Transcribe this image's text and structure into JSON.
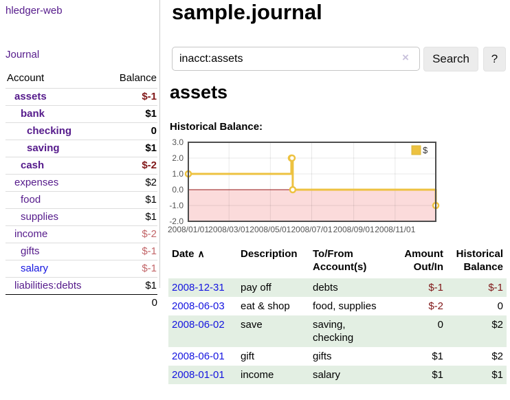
{
  "colors": {
    "link_purple": "#551a8b",
    "link_blue": "#1414e0",
    "negative_strong": "#801718",
    "negative_light": "#c26568",
    "row_stripe_green": "#e3efe3",
    "series_yellow": "#edc240",
    "negative_region_pink": "#fbdbdb",
    "zero_line_red": "#951515"
  },
  "sidebar": {
    "app_title": "hledger-web",
    "nav": {
      "journal": "Journal"
    },
    "accounts_table": {
      "headers": {
        "account": "Account",
        "balance": "Balance"
      },
      "rows": [
        {
          "name": "assets",
          "depth": 1,
          "bold": true,
          "link": "purple",
          "balance": "$-1",
          "tone": "neg"
        },
        {
          "name": "bank",
          "depth": 2,
          "bold": true,
          "link": "purple",
          "balance": "$1",
          "tone": "pos"
        },
        {
          "name": "checking",
          "depth": 3,
          "bold": true,
          "link": "purple",
          "balance": "0",
          "tone": "pos"
        },
        {
          "name": "saving",
          "depth": 3,
          "bold": true,
          "link": "purple",
          "balance": "$1",
          "tone": "pos"
        },
        {
          "name": "cash",
          "depth": 2,
          "bold": true,
          "link": "purple",
          "balance": "$-2",
          "tone": "neg"
        },
        {
          "name": "expenses",
          "depth": 1,
          "bold": false,
          "link": "purple",
          "balance": "$2",
          "tone": "pos"
        },
        {
          "name": "food",
          "depth": 2,
          "bold": false,
          "link": "purple",
          "balance": "$1",
          "tone": "pos"
        },
        {
          "name": "supplies",
          "depth": 2,
          "bold": false,
          "link": "purple",
          "balance": "$1",
          "tone": "pos"
        },
        {
          "name": "income",
          "depth": 1,
          "bold": false,
          "link": "purple",
          "balance": "$-2",
          "tone": "neglight"
        },
        {
          "name": "gifts",
          "depth": 2,
          "bold": false,
          "link": "purple",
          "balance": "$-1",
          "tone": "neglight"
        },
        {
          "name": "salary",
          "depth": 2,
          "bold": false,
          "link": "blue",
          "balance": "$-1",
          "tone": "neglight"
        },
        {
          "name": "liabilities:debts",
          "depth": 1,
          "bold": false,
          "link": "purple",
          "balance": "$1",
          "tone": "pos"
        }
      ],
      "total": "0"
    }
  },
  "main": {
    "title": "sample.journal",
    "search": {
      "value": "inacct:assets",
      "clear_icon": "×",
      "button_label": "Search",
      "help_label": "?"
    },
    "account_heading": "assets",
    "chart_heading": "Historical Balance:"
  },
  "chart_data": {
    "type": "line",
    "step": true,
    "title": "Historical Balance:",
    "series": [
      {
        "name": "$",
        "color": "#edc240",
        "points": [
          [
            "2008-01-01",
            1
          ],
          [
            "2008-06-01",
            2
          ],
          [
            "2008-06-02",
            2
          ],
          [
            "2008-06-03",
            0
          ],
          [
            "2008-12-31",
            -1
          ]
        ]
      }
    ],
    "xlim": [
      "2008-01-01",
      "2008-12-31"
    ],
    "ylim": [
      -2,
      3
    ],
    "y_ticks": [
      {
        "value": 3,
        "label": "3.0"
      },
      {
        "value": 2,
        "label": "2.0"
      },
      {
        "value": 1,
        "label": "1.0"
      },
      {
        "value": 0,
        "label": "0.0"
      },
      {
        "value": -1,
        "label": "-1.0"
      },
      {
        "value": -2,
        "label": "-2.0"
      }
    ],
    "x_ticks": [
      {
        "date": "2008-01-01",
        "label": "2008/01/01"
      },
      {
        "date": "2008-03-01",
        "label": "2008/03/01"
      },
      {
        "date": "2008-05-01",
        "label": "2008/05/01"
      },
      {
        "date": "2008-07-01",
        "label": "2008/07/01"
      },
      {
        "date": "2008-09-01",
        "label": "2008/09/01"
      },
      {
        "date": "2008-11-01",
        "label": "2008/11/01"
      }
    ],
    "grid": true,
    "legend": {
      "label": "$",
      "position": "top-right"
    },
    "negative_region_fill": "#fbdbdb",
    "zero_line_color": "#951515"
  },
  "transactions": {
    "headers": {
      "date": "Date",
      "sort_icon": "∧",
      "description": "Description",
      "accounts": "To/From Account(s)",
      "amount": "Amount Out/In",
      "balance": "Historical Balance"
    },
    "rows": [
      {
        "date": "2008-12-31",
        "description": "pay off",
        "accounts": "debts",
        "amount": "$-1",
        "amount_tone": "neg",
        "balance": "$-1",
        "balance_tone": "neg"
      },
      {
        "date": "2008-06-03",
        "description": "eat & shop",
        "accounts": "food, supplies",
        "amount": "$-2",
        "amount_tone": "neg",
        "balance": "0",
        "balance_tone": "pos"
      },
      {
        "date": "2008-06-02",
        "description": "save",
        "accounts": "saving, checking",
        "amount": "0",
        "amount_tone": "pos",
        "balance": "$2",
        "balance_tone": "pos"
      },
      {
        "date": "2008-06-01",
        "description": "gift",
        "accounts": "gifts",
        "amount": "$1",
        "amount_tone": "pos",
        "balance": "$2",
        "balance_tone": "pos"
      },
      {
        "date": "2008-01-01",
        "description": "income",
        "accounts": "salary",
        "amount": "$1",
        "amount_tone": "pos",
        "balance": "$1",
        "balance_tone": "pos"
      }
    ]
  }
}
